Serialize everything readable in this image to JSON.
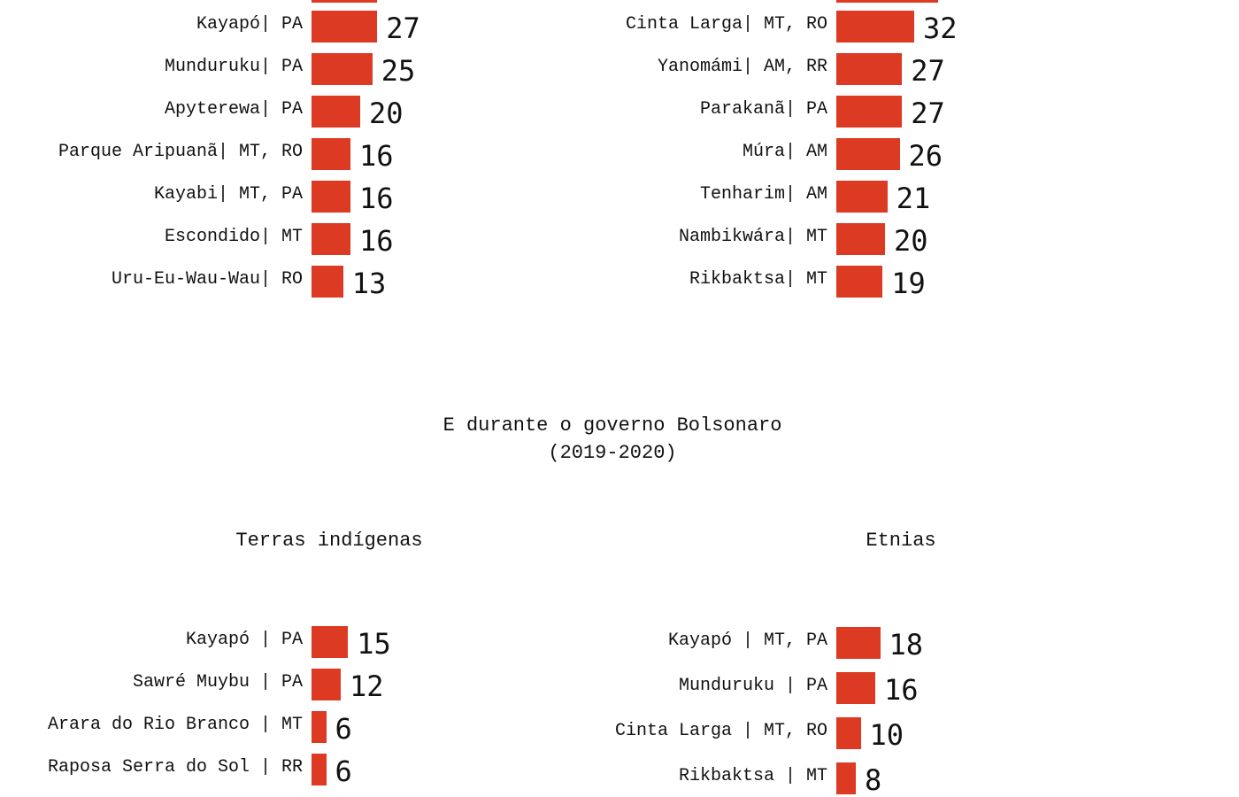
{
  "colors": {
    "bar": "#dc3a22",
    "text": "#111111",
    "background": "#ffffff"
  },
  "section_title": {
    "line1": "E durante o governo Bolsonaro",
    "line2": "(2019-2020)"
  },
  "chart_data": [
    {
      "type": "bar",
      "orientation": "horizontal",
      "title": "",
      "categories": [
        "Kayapó| PA",
        "Munduruku| PA",
        "Apyterewa| PA",
        "Parque Aripuanã| MT, RO",
        "Kayabi| MT, PA",
        "Escondido| MT",
        "Uru-Eu-Wau-Wau| RO"
      ],
      "values": [
        27,
        25,
        20,
        16,
        16,
        16,
        13
      ]
    },
    {
      "type": "bar",
      "orientation": "horizontal",
      "title": "",
      "categories": [
        "Cinta Larga| MT, RO",
        "Yanomámi| AM, RR",
        "Parakanã| PA",
        "Múra| AM",
        "Tenharim| AM",
        "Nambikwára| MT",
        "Rikbaktsa| MT"
      ],
      "values": [
        32,
        27,
        27,
        26,
        21,
        20,
        19
      ]
    },
    {
      "type": "bar",
      "orientation": "horizontal",
      "title": "Terras indígenas",
      "categories": [
        "Kayapó | PA",
        "Sawré Muybu | PA",
        "Arara do Rio Branco | MT",
        "Raposa Serra do Sol | RR"
      ],
      "values": [
        15,
        12,
        6,
        6
      ]
    },
    {
      "type": "bar",
      "orientation": "horizontal",
      "title": "Etnias",
      "categories": [
        "Kayapó | MT, PA",
        "Munduruku | PA",
        "Cinta Larga | MT, RO",
        "Rikbaktsa | MT"
      ],
      "values": [
        18,
        16,
        10,
        8
      ]
    }
  ]
}
